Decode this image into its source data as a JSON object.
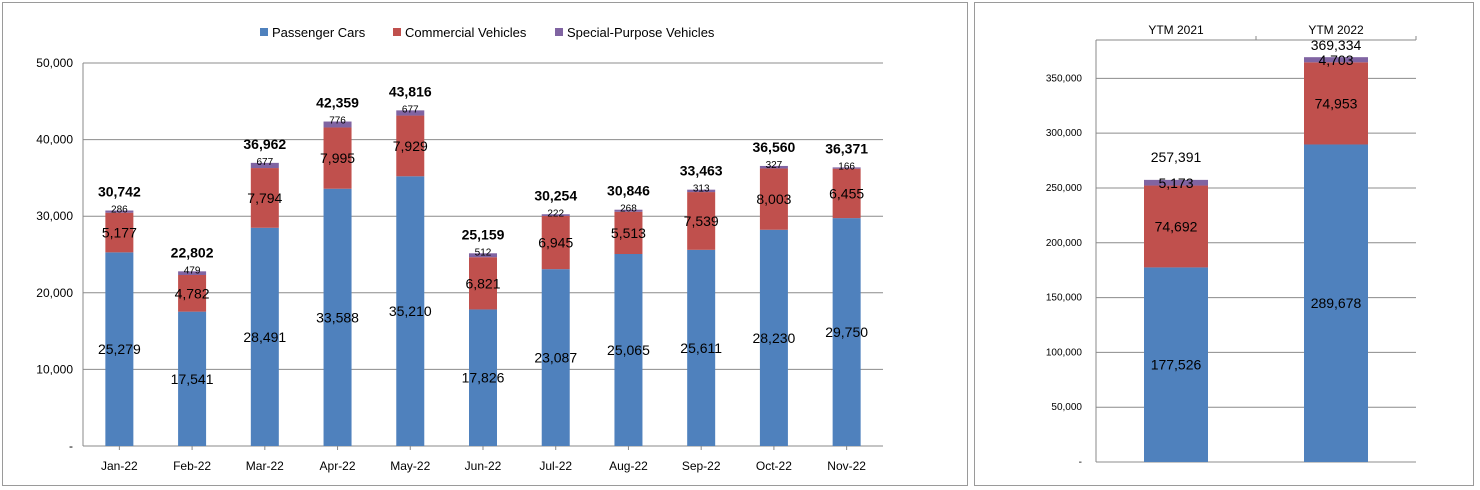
{
  "chart_data": [
    {
      "type": "bar",
      "stacked": true,
      "categories": [
        "Jan-22",
        "Feb-22",
        "Mar-22",
        "Apr-22",
        "May-22",
        "Jun-22",
        "Jul-22",
        "Aug-22",
        "Sep-22",
        "Oct-22",
        "Nov-22"
      ],
      "series": [
        {
          "name": "Passenger Cars",
          "color": "#4f81bd",
          "values": [
            25279,
            17541,
            28491,
            33588,
            35210,
            17826,
            23087,
            25065,
            25611,
            28230,
            29750
          ],
          "labels": [
            "25,279",
            "17,541",
            "28,491",
            "33,588",
            "35,210",
            "17,826",
            "23,087",
            "25,065",
            "25,611",
            "28,230",
            "29,750"
          ]
        },
        {
          "name": "Commercial Vehicles",
          "color": "#c0504d",
          "values": [
            5177,
            4782,
            7794,
            7995,
            7929,
            6821,
            6945,
            5513,
            7539,
            8003,
            6455
          ],
          "labels": [
            "5,177",
            "4,782",
            "7,794",
            "7,995",
            "7,929",
            "6,821",
            "6,945",
            "5,513",
            "7,539",
            "8,003",
            "6,455"
          ]
        },
        {
          "name": "Special-Purpose Vehicles",
          "color": "#8064a2",
          "values": [
            286,
            479,
            677,
            776,
            677,
            512,
            222,
            268,
            313,
            327,
            166
          ],
          "labels": [
            "286",
            "479",
            "677",
            "776",
            "677",
            "512",
            "222",
            "268",
            "313",
            "327",
            "166"
          ]
        }
      ],
      "totals": [
        "30,742",
        "22,802",
        "36,962",
        "42,359",
        "43,816",
        "25,159",
        "30,254",
        "30,846",
        "33,463",
        "36,560",
        "36,371"
      ],
      "yticks": [
        "-",
        "10,000",
        "20,000",
        "30,000",
        "40,000",
        "50,000"
      ],
      "ylim": [
        0,
        50000
      ],
      "legend_position": "top-center",
      "grid": true
    },
    {
      "type": "bar",
      "stacked": true,
      "categories": [
        "YTM 2021",
        "YTM 2022"
      ],
      "series": [
        {
          "name": "Passenger Cars",
          "color": "#4f81bd",
          "values": [
            177526,
            289678
          ],
          "labels": [
            "177,526",
            "289,678"
          ]
        },
        {
          "name": "Commercial Vehicles",
          "color": "#c0504d",
          "values": [
            74692,
            74953
          ],
          "labels": [
            "74,692",
            "74,953"
          ]
        },
        {
          "name": "Special-Purpose Vehicles",
          "color": "#8064a2",
          "values": [
            5173,
            4703
          ],
          "labels": [
            "5,173",
            "4,703"
          ]
        }
      ],
      "totals": [
        "257,391",
        "369,334"
      ],
      "yticks": [
        "-",
        "50,000",
        "100,000",
        "150,000",
        "200,000",
        "250,000",
        "300,000",
        "350,000"
      ],
      "ylim": [
        0,
        385000
      ],
      "category_axis_position": "top",
      "grid": true
    }
  ]
}
